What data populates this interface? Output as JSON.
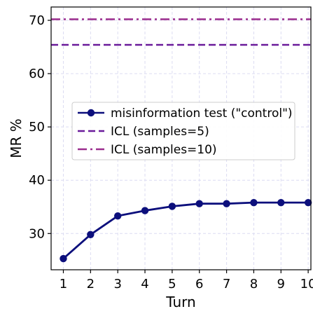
{
  "chart_data": {
    "type": "line",
    "xlabel": "Turn",
    "ylabel": "MR %",
    "xlim": [
      0.55,
      10.1
    ],
    "ylim": [
      23.2,
      72.5
    ],
    "x_ticks": [
      "1",
      "2",
      "3",
      "4",
      "5",
      "6",
      "7",
      "8",
      "9",
      "10"
    ],
    "y_ticks": [
      "30",
      "40",
      "50",
      "60",
      "70"
    ],
    "grid": true,
    "legend_position": "center-left",
    "series": [
      {
        "name": "misinformation test (\"control\")",
        "style": "solid-marker",
        "color": "#0c0f7c",
        "x": [
          1,
          2,
          3,
          4,
          5,
          6,
          7,
          8,
          9,
          10
        ],
        "y": [
          25.3,
          29.8,
          33.3,
          34.3,
          35.1,
          35.6,
          35.6,
          35.8,
          35.8,
          35.8
        ]
      },
      {
        "name": "ICL (samples=5)",
        "style": "dashed",
        "color": "#6a1b9a",
        "y": 65.4
      },
      {
        "name": "ICL (samples=10)",
        "style": "dashdot",
        "color": "#9b2d8e",
        "y": 70.2
      }
    ]
  }
}
